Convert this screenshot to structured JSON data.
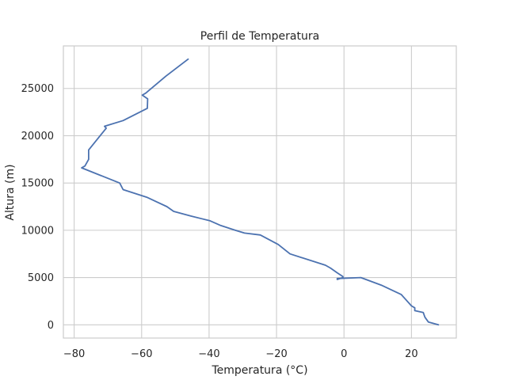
{
  "chart_data": {
    "type": "line",
    "title": "Perfil de Temperatura",
    "xlabel": "Temperatura (°C)",
    "ylabel": "Altura (m)",
    "xlim": [
      -83.2,
      33.3
    ],
    "ylim": [
      -1400,
      29500
    ],
    "xticks": [
      -80,
      -60,
      -40,
      -20,
      0,
      20
    ],
    "xtick_labels": [
      "−80",
      "−60",
      "−40",
      "−20",
      "0",
      "20"
    ],
    "yticks": [
      0,
      5000,
      10000,
      15000,
      20000,
      25000
    ],
    "ytick_labels": [
      "0",
      "5000",
      "10000",
      "15000",
      "20000",
      "25000"
    ],
    "grid": true,
    "series": [
      {
        "color": "#4c72b0",
        "x": [
          28,
          25,
          24,
          23.5,
          21,
          21,
          20,
          17,
          11,
          5,
          -2,
          -2,
          -0.3,
          -0.3,
          -2,
          -4,
          -5.5,
          -16,
          -19.5,
          -24.8,
          -29.5,
          -32.2,
          -36.5,
          -39.7,
          -45.3,
          -50.5,
          -52.5,
          -58.5,
          -65.5,
          -66.5,
          -77.8,
          -76.8,
          -75.7,
          -75.7,
          -70.5,
          -71,
          -65.5,
          -58.3,
          -58.2,
          -59.8,
          -58.8,
          -52.8,
          -46.2
        ],
        "y": [
          0,
          300,
          800,
          1300,
          1500,
          1800,
          2000,
          3200,
          4200,
          5000,
          4900,
          4800,
          5000,
          5100,
          5500,
          6000,
          6300,
          7500,
          8500,
          9500,
          9700,
          10000,
          10500,
          11000,
          11500,
          12000,
          12500,
          13500,
          14300,
          15000,
          16600,
          16800,
          17500,
          18500,
          20800,
          21000,
          21600,
          22900,
          23900,
          24300,
          24500,
          26300,
          28100
        ]
      }
    ]
  }
}
